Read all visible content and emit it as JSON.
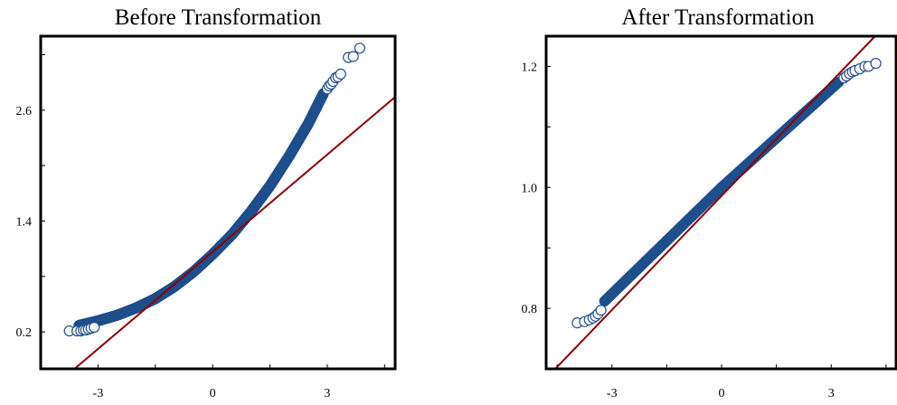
{
  "colors": {
    "point_stroke": "#1f4e8c",
    "point_fill": "none",
    "dense_fill": "#1f4e8c",
    "reference_line": "#8b0000",
    "frame": "#000000"
  },
  "chart_data": [
    {
      "type": "scatter",
      "title": "Before Transformation",
      "xlabel": "",
      "ylabel": "",
      "xlim": [
        -4.5,
        4.8
      ],
      "ylim": [
        -0.2,
        3.4
      ],
      "xticks": [
        {
          "value": -3,
          "label": "-3"
        },
        {
          "value": 0,
          "label": "0"
        },
        {
          "value": 3,
          "label": "3"
        }
      ],
      "yticks": [
        {
          "value": 0.2,
          "label": "0.2"
        },
        {
          "value": 1.4,
          "label": "1.4"
        },
        {
          "value": 2.6,
          "label": "2.6"
        }
      ],
      "grid": false,
      "reference_line": {
        "points": [
          [
            -3.9,
            -0.3
          ],
          [
            4.8,
            2.75
          ]
        ]
      },
      "band": [
        [
          -3.5,
          0.27
        ],
        [
          -3.0,
          0.32
        ],
        [
          -2.5,
          0.38
        ],
        [
          -2.0,
          0.46
        ],
        [
          -1.5,
          0.56
        ],
        [
          -1.0,
          0.69
        ],
        [
          -0.5,
          0.85
        ],
        [
          0.0,
          1.04
        ],
        [
          0.5,
          1.25
        ],
        [
          1.0,
          1.5
        ],
        [
          1.5,
          1.78
        ],
        [
          2.0,
          2.1
        ],
        [
          2.5,
          2.45
        ],
        [
          2.9,
          2.78
        ]
      ],
      "points": [
        [
          -3.75,
          0.21
        ],
        [
          -3.55,
          0.21
        ],
        [
          -3.45,
          0.21
        ],
        [
          -3.38,
          0.22
        ],
        [
          -3.32,
          0.22
        ],
        [
          -3.25,
          0.23
        ],
        [
          -3.18,
          0.24
        ],
        [
          -3.1,
          0.25
        ],
        [
          3.0,
          2.83
        ],
        [
          3.05,
          2.86
        ],
        [
          3.1,
          2.88
        ],
        [
          3.15,
          2.91
        ],
        [
          3.22,
          2.95
        ],
        [
          3.28,
          2.96
        ],
        [
          3.35,
          2.99
        ],
        [
          3.55,
          3.17
        ],
        [
          3.68,
          3.18
        ],
        [
          3.85,
          3.27
        ]
      ]
    },
    {
      "type": "scatter",
      "title": "After Transformation",
      "xlabel": "",
      "ylabel": "",
      "xlim": [
        -4.8,
        4.8
      ],
      "ylim": [
        0.7,
        1.25
      ],
      "xticks": [
        {
          "value": -3,
          "label": "-3"
        },
        {
          "value": 0,
          "label": "0"
        },
        {
          "value": 3,
          "label": "3"
        }
      ],
      "yticks": [
        {
          "value": 0.8,
          "label": "0.8"
        },
        {
          "value": 1.0,
          "label": "1.0"
        },
        {
          "value": 1.2,
          "label": "1.2"
        }
      ],
      "grid": false,
      "reference_line": {
        "points": [
          [
            -4.55,
            0.7
          ],
          [
            4.2,
            1.25
          ]
        ]
      },
      "band": [
        [
          -3.2,
          0.812
        ],
        [
          0.0,
          1.0
        ],
        [
          3.2,
          1.174
        ]
      ],
      "points": [
        [
          -3.95,
          0.776
        ],
        [
          -3.75,
          0.778
        ],
        [
          -3.62,
          0.781
        ],
        [
          -3.52,
          0.784
        ],
        [
          -3.45,
          0.787
        ],
        [
          -3.38,
          0.791
        ],
        [
          -3.3,
          0.797
        ],
        [
          3.35,
          1.181
        ],
        [
          3.42,
          1.184
        ],
        [
          3.5,
          1.188
        ],
        [
          3.58,
          1.191
        ],
        [
          3.65,
          1.193
        ],
        [
          3.78,
          1.196
        ],
        [
          3.92,
          1.2
        ],
        [
          4.02,
          1.2
        ],
        [
          4.22,
          1.205
        ]
      ]
    }
  ]
}
